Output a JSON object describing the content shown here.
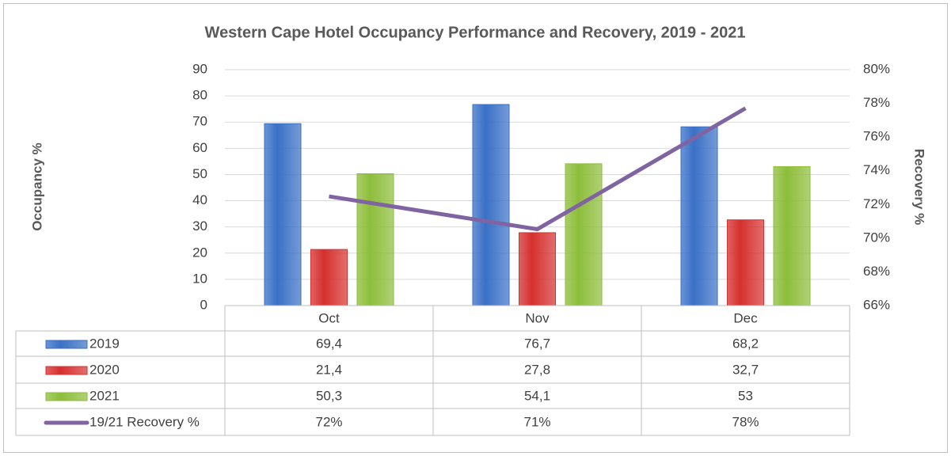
{
  "chart_data": {
    "type": "bar",
    "title": "Western Cape Hotel Occupancy Performance and Recovery, 2019 - 2021",
    "ylabel": "Occupancy %",
    "y2label": "Recovery %",
    "categories": [
      "Oct",
      "Nov",
      "Dec"
    ],
    "series": [
      {
        "name": "2019",
        "type": "bar",
        "color": "#3a70c6",
        "values": [
          69.4,
          76.7,
          68.2
        ],
        "value_labels": [
          "69,4",
          "76,7",
          "68,2"
        ]
      },
      {
        "name": "2020",
        "type": "bar",
        "color": "#d5302e",
        "values": [
          21.4,
          27.8,
          32.7
        ],
        "value_labels": [
          "21,4",
          "27,8",
          "32,7"
        ]
      },
      {
        "name": "2021",
        "type": "bar",
        "color": "#8dbd3a",
        "values": [
          50.3,
          54.1,
          53
        ],
        "value_labels": [
          "50,3",
          "54,1",
          "53"
        ]
      },
      {
        "name": "19/21 Recovery %",
        "type": "line",
        "axis": "y2",
        "color": "#8064a2",
        "values": [
          72.48,
          70.53,
          77.71
        ],
        "value_labels": [
          "72%",
          "71%",
          "78%"
        ]
      }
    ],
    "ylim": [
      0,
      90
    ],
    "yticks": [
      0,
      10,
      20,
      30,
      40,
      50,
      60,
      70,
      80,
      90
    ],
    "y2lim": [
      66,
      80
    ],
    "y2ticks": [
      {
        "value": 66,
        "label": "66%"
      },
      {
        "value": 68,
        "label": "68%"
      },
      {
        "value": 70,
        "label": "70%"
      },
      {
        "value": 72,
        "label": "72%"
      },
      {
        "value": 74,
        "label": "74%"
      },
      {
        "value": 76,
        "label": "76%"
      },
      {
        "value": 78,
        "label": "78%"
      },
      {
        "value": 80,
        "label": "80%"
      }
    ],
    "grid": true,
    "data_table": true
  }
}
